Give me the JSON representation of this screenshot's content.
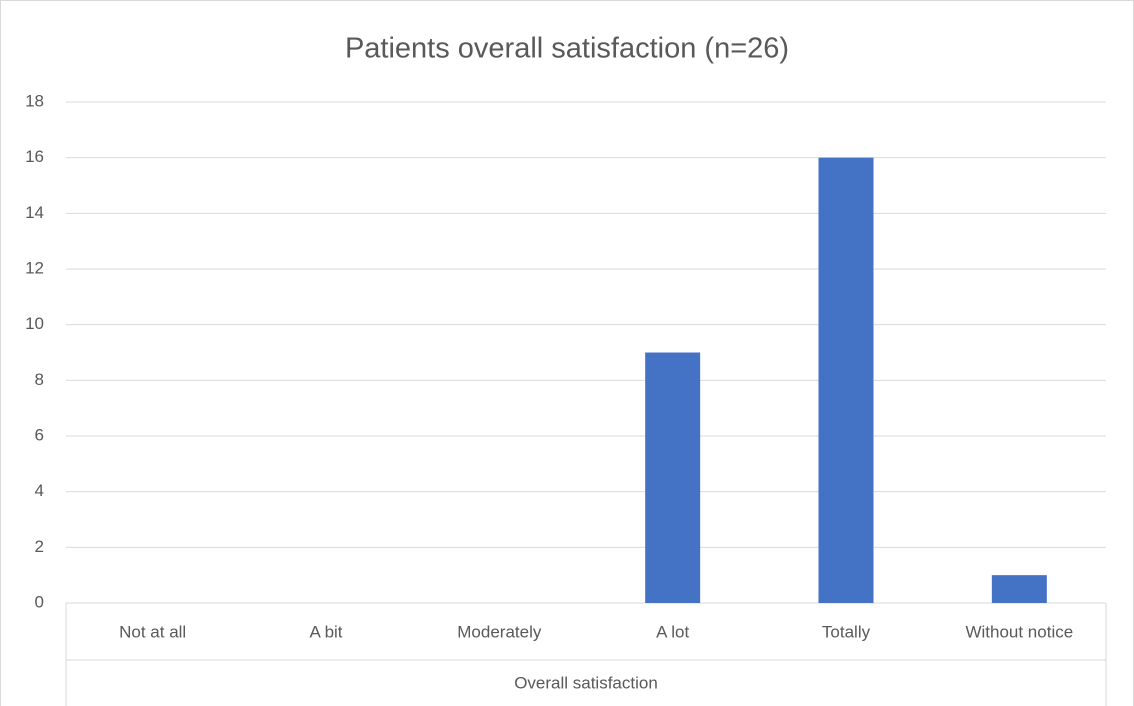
{
  "chart_data": {
    "type": "bar",
    "title": "Patients overall satisfaction (n=26)",
    "categories": [
      "Not at all",
      "A bit",
      "Moderately",
      "A lot",
      "Totally",
      "Without notice"
    ],
    "values": [
      0,
      0,
      0,
      9,
      16,
      1
    ],
    "color": "#4472c4",
    "x_label": "Overall satisfaction",
    "ylim": [
      0,
      18
    ],
    "yticks": [
      0,
      2,
      4,
      6,
      8,
      10,
      12,
      14,
      16,
      18
    ],
    "grid": true
  }
}
